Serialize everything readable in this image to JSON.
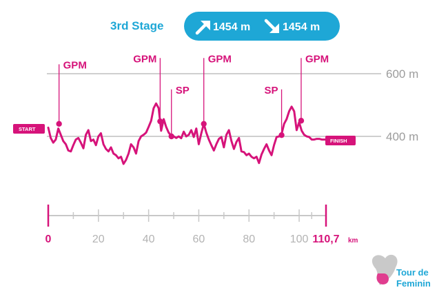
{
  "header": {
    "title": "3rd Stage",
    "ascent": "1454 m",
    "descent": "1454 m",
    "accent_color": "#1ea7d6"
  },
  "chart_data": {
    "type": "line",
    "line_color": "#d6137a",
    "x_range": [
      0,
      110.7
    ],
    "y_range": [
      250,
      680
    ],
    "y_labels": [
      {
        "value": 600,
        "label": "600 m"
      },
      {
        "value": 400,
        "label": "400 m"
      }
    ],
    "x_ticks_labeled": [
      {
        "value": 0,
        "label": "0",
        "accent": true
      },
      {
        "value": 20,
        "label": "20",
        "accent": false
      },
      {
        "value": 40,
        "label": "40",
        "accent": false
      },
      {
        "value": 60,
        "label": "60",
        "accent": false
      },
      {
        "value": 80,
        "label": "80",
        "accent": false
      },
      {
        "value": 100,
        "label": "100",
        "accent": false
      },
      {
        "value": 110.7,
        "label": "110,7",
        "accent": true
      }
    ],
    "x_minor_ticks": [
      10,
      30,
      50,
      70,
      90,
      105
    ],
    "distance_unit": "km",
    "start_label": "START",
    "finish_label": "FINISH",
    "profile": [
      {
        "x": 0.0,
        "y": 428
      },
      {
        "x": 1.0,
        "y": 395
      },
      {
        "x": 2.0,
        "y": 380
      },
      {
        "x": 3.0,
        "y": 390
      },
      {
        "x": 4.0,
        "y": 425
      },
      {
        "x": 5.0,
        "y": 405
      },
      {
        "x": 6.0,
        "y": 385
      },
      {
        "x": 7.0,
        "y": 375
      },
      {
        "x": 8.0,
        "y": 355
      },
      {
        "x": 9.0,
        "y": 352
      },
      {
        "x": 10.0,
        "y": 372
      },
      {
        "x": 11.0,
        "y": 390
      },
      {
        "x": 12.0,
        "y": 395
      },
      {
        "x": 13.0,
        "y": 380
      },
      {
        "x": 14.0,
        "y": 362
      },
      {
        "x": 15.0,
        "y": 405
      },
      {
        "x": 16.0,
        "y": 420
      },
      {
        "x": 17.0,
        "y": 385
      },
      {
        "x": 18.0,
        "y": 390
      },
      {
        "x": 19.0,
        "y": 372
      },
      {
        "x": 20.0,
        "y": 400
      },
      {
        "x": 21.0,
        "y": 410
      },
      {
        "x": 22.0,
        "y": 375
      },
      {
        "x": 23.0,
        "y": 360
      },
      {
        "x": 24.0,
        "y": 352
      },
      {
        "x": 25.0,
        "y": 365
      },
      {
        "x": 26.0,
        "y": 345
      },
      {
        "x": 27.0,
        "y": 340
      },
      {
        "x": 28.0,
        "y": 330
      },
      {
        "x": 29.0,
        "y": 335
      },
      {
        "x": 30.0,
        "y": 312
      },
      {
        "x": 31.0,
        "y": 325
      },
      {
        "x": 32.0,
        "y": 345
      },
      {
        "x": 33.0,
        "y": 375
      },
      {
        "x": 34.0,
        "y": 365
      },
      {
        "x": 35.0,
        "y": 345
      },
      {
        "x": 36.0,
        "y": 385
      },
      {
        "x": 37.0,
        "y": 400
      },
      {
        "x": 38.0,
        "y": 405
      },
      {
        "x": 39.0,
        "y": 412
      },
      {
        "x": 40.0,
        "y": 430
      },
      {
        "x": 41.0,
        "y": 450
      },
      {
        "x": 42.0,
        "y": 490
      },
      {
        "x": 43.0,
        "y": 505
      },
      {
        "x": 44.0,
        "y": 490
      },
      {
        "x": 45.0,
        "y": 418
      },
      {
        "x": 46.0,
        "y": 455
      },
      {
        "x": 47.0,
        "y": 430
      },
      {
        "x": 48.0,
        "y": 412
      },
      {
        "x": 49.0,
        "y": 402
      },
      {
        "x": 50.0,
        "y": 400
      },
      {
        "x": 51.0,
        "y": 395
      },
      {
        "x": 52.0,
        "y": 400
      },
      {
        "x": 53.0,
        "y": 394
      },
      {
        "x": 54.0,
        "y": 415
      },
      {
        "x": 55.0,
        "y": 400
      },
      {
        "x": 56.0,
        "y": 405
      },
      {
        "x": 57.0,
        "y": 420
      },
      {
        "x": 58.0,
        "y": 398
      },
      {
        "x": 59.0,
        "y": 425
      },
      {
        "x": 60.0,
        "y": 375
      },
      {
        "x": 61.0,
        "y": 410
      },
      {
        "x": 62.0,
        "y": 440
      },
      {
        "x": 63.0,
        "y": 412
      },
      {
        "x": 64.0,
        "y": 390
      },
      {
        "x": 65.0,
        "y": 372
      },
      {
        "x": 66.0,
        "y": 355
      },
      {
        "x": 67.0,
        "y": 375
      },
      {
        "x": 68.0,
        "y": 392
      },
      {
        "x": 69.0,
        "y": 398
      },
      {
        "x": 70.0,
        "y": 365
      },
      {
        "x": 71.0,
        "y": 405
      },
      {
        "x": 72.0,
        "y": 420
      },
      {
        "x": 73.0,
        "y": 385
      },
      {
        "x": 74.0,
        "y": 360
      },
      {
        "x": 75.0,
        "y": 382
      },
      {
        "x": 76.0,
        "y": 395
      },
      {
        "x": 77.0,
        "y": 352
      },
      {
        "x": 78.0,
        "y": 350
      },
      {
        "x": 79.0,
        "y": 340
      },
      {
        "x": 80.0,
        "y": 345
      },
      {
        "x": 81.0,
        "y": 335
      },
      {
        "x": 82.0,
        "y": 330
      },
      {
        "x": 83.0,
        "y": 335
      },
      {
        "x": 84.0,
        "y": 315
      },
      {
        "x": 85.0,
        "y": 342
      },
      {
        "x": 86.0,
        "y": 360
      },
      {
        "x": 87.0,
        "y": 375
      },
      {
        "x": 88.0,
        "y": 355
      },
      {
        "x": 89.0,
        "y": 340
      },
      {
        "x": 90.0,
        "y": 372
      },
      {
        "x": 91.0,
        "y": 398
      },
      {
        "x": 92.0,
        "y": 400
      },
      {
        "x": 93.0,
        "y": 408
      },
      {
        "x": 94.0,
        "y": 440
      },
      {
        "x": 95.0,
        "y": 455
      },
      {
        "x": 96.0,
        "y": 480
      },
      {
        "x": 97.0,
        "y": 495
      },
      {
        "x": 98.0,
        "y": 480
      },
      {
        "x": 99.0,
        "y": 420
      },
      {
        "x": 100.0,
        "y": 445
      },
      {
        "x": 101.0,
        "y": 418
      },
      {
        "x": 102.0,
        "y": 405
      },
      {
        "x": 103.0,
        "y": 400
      },
      {
        "x": 104.0,
        "y": 398
      },
      {
        "x": 105.0,
        "y": 390
      },
      {
        "x": 106.0,
        "y": 390
      },
      {
        "x": 107.0,
        "y": 392
      },
      {
        "x": 108.0,
        "y": 392
      },
      {
        "x": 109.0,
        "y": 390
      },
      {
        "x": 110.7,
        "y": 390
      }
    ],
    "annotations": [
      {
        "type": "GPM",
        "label": "GPM",
        "x": 4.3,
        "y": 440,
        "line_to": 630,
        "text_side": "right"
      },
      {
        "type": "GPM",
        "label": "GPM",
        "x": 44.6,
        "y": 448,
        "line_to": 650,
        "text_side": "left"
      },
      {
        "type": "SP",
        "label": "SP",
        "x": 49.1,
        "y": 400,
        "line_to": 550,
        "text_side": "right"
      },
      {
        "type": "GPM",
        "label": "GPM",
        "x": 62.0,
        "y": 440,
        "line_to": 650,
        "text_side": "right"
      },
      {
        "type": "SP",
        "label": "SP",
        "x": 93.0,
        "y": 404,
        "line_to": 550,
        "text_side": "left"
      },
      {
        "type": "GPM",
        "label": "GPM",
        "x": 100.8,
        "y": 450,
        "line_to": 650,
        "text_side": "right"
      }
    ]
  },
  "logo": {
    "line1": "Tour de",
    "line2": "Feminin"
  }
}
